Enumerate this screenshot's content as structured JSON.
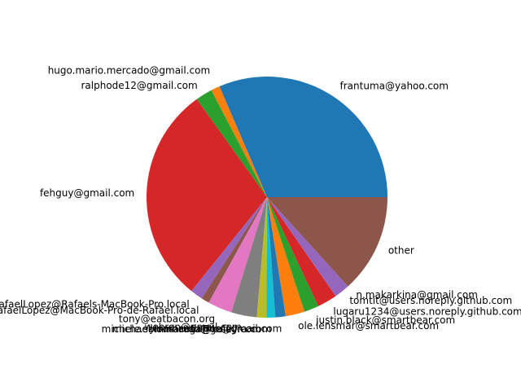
{
  "chart_data": {
    "type": "pie",
    "title": "",
    "start_angle_deg": 0,
    "direction": "counterclockwise",
    "slices": [
      {
        "label": "frantuma@yahoo.com",
        "value": 32.0,
        "color": "#1f77b4"
      },
      {
        "label": "hugo.mario.mercado@gmail.com",
        "value": 1.2,
        "color": "#ff7f0e"
      },
      {
        "label": "ralphode12@gmail.com",
        "value": 2.3,
        "color": "#2ca02c"
      },
      {
        "label": "fehguy@gmail.com",
        "value": 29.8,
        "color": "#d62728"
      },
      {
        "label": "RafaelLopez@Rafaels-MacBook-Pro.local",
        "value": 1.7,
        "color": "#9467bd"
      },
      {
        "label": "RafaelLopez@MacBook-Pro-de-Rafael.local",
        "value": 1.1,
        "color": "#8c564b"
      },
      {
        "label": "tony@eatbacon.org",
        "value": 3.3,
        "color": "#e377c2"
      },
      {
        "label": "webron@gmail.com",
        "value": 3.5,
        "color": "#7f7f7f"
      },
      {
        "label": "michael.lombardo@gmail.com",
        "value": 1.3,
        "color": "#bcbd22"
      },
      {
        "label": "michele.sommaruga@kaleyra.com",
        "value": 1.2,
        "color": "#17becf"
      },
      {
        "label": "jeromeetienne@gmail.com",
        "value": 1.4,
        "color": "#1f77b4"
      },
      {
        "label": "ole.lensmar@smartbear.com",
        "value": 2.6,
        "color": "#ff7f0e"
      },
      {
        "label": "justin.black@smartbear.com",
        "value": 2.0,
        "color": "#2ca02c"
      },
      {
        "label": "lugaru1234@users.noreply.github.com",
        "value": 2.7,
        "color": "#d62728"
      },
      {
        "label": "tomtit@users.noreply.github.com",
        "value": 2.1,
        "color": "#9467bd"
      },
      {
        "label": "n.makarkina@gmail.com",
        "value": 0.0,
        "color": "#8c564b"
      },
      {
        "label": "other",
        "value": 13.5,
        "color": "#8c564b"
      }
    ],
    "label_positions": [
      {
        "label": "frantuma@yahoo.com",
        "ha": "left"
      },
      {
        "label": "hugo.mario.mercado@gmail.com",
        "ha": "right"
      },
      {
        "label": "ralphode12@gmail.com",
        "ha": "right"
      },
      {
        "label": "fehguy@gmail.com",
        "ha": "right"
      },
      {
        "label": "RafaelLopez@Rafaels-MacBook-Pro.local",
        "ha": "right"
      },
      {
        "label": "RafaelLopez@MacBook-Pro-de-Rafael.local",
        "ha": "right"
      },
      {
        "label": "tony@eatbacon.org",
        "ha": "right"
      },
      {
        "label": "webron@gmail.com",
        "ha": "right"
      },
      {
        "label": "michael.lombardo@gmail.com",
        "ha": "right"
      },
      {
        "label": "michele.sommaruga@kaleyra.com",
        "ha": "right"
      },
      {
        "label": "jeromeetienne@gmail.com",
        "ha": "right"
      },
      {
        "label": "ole.lensmar@smartbear.com",
        "ha": "left"
      },
      {
        "label": "justin.black@smartbear.com",
        "ha": "left"
      },
      {
        "label": "lugaru1234@users.noreply.github.com",
        "ha": "left"
      },
      {
        "label": "tomtit@users.noreply.github.com",
        "ha": "left"
      },
      {
        "label": "n.makarkina@gmail.com",
        "ha": "left"
      },
      {
        "label": "other",
        "ha": "left"
      }
    ]
  }
}
